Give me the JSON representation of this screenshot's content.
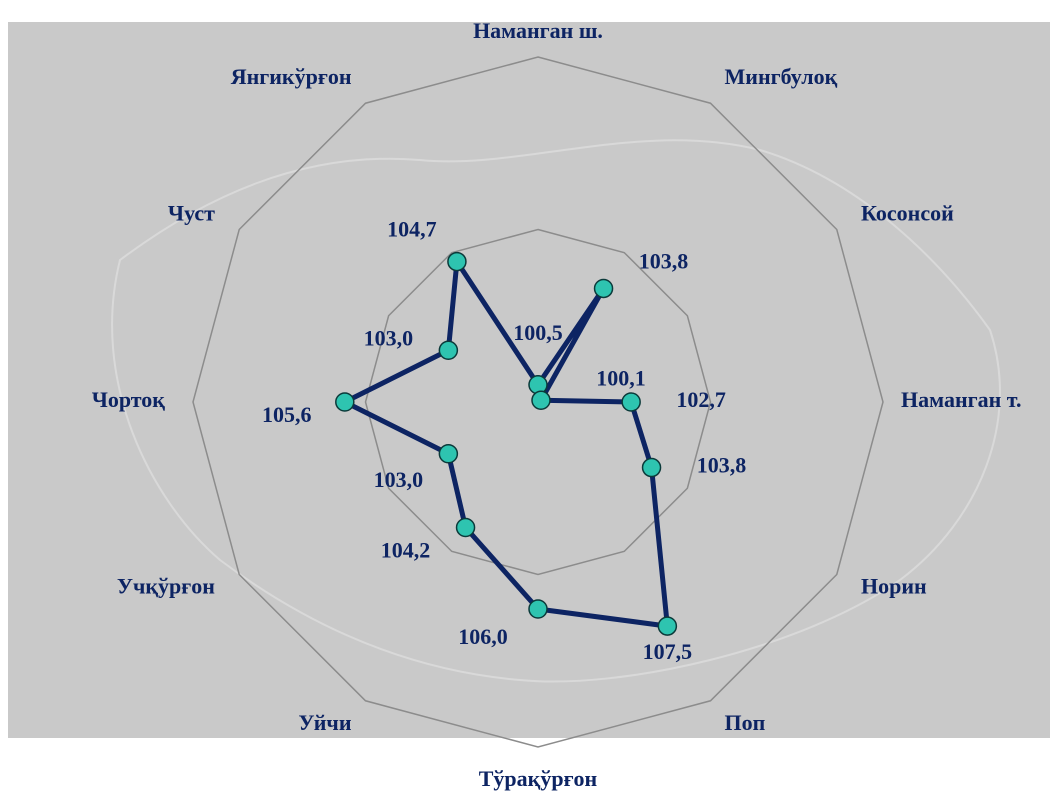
{
  "chart_data": {
    "type": "radar",
    "categories": [
      "Наманган ш.",
      "Мингбулоқ",
      "Косонсой",
      "Наманган т.",
      "Норин",
      "Поп",
      "Тўрақўрғон",
      "Уйчи",
      "Учқўрғон",
      "Чортоқ",
      "Чуст",
      "Янгикўрғон"
    ],
    "values": [
      100.5,
      103.8,
      100.1,
      102.7,
      103.8,
      107.5,
      106.0,
      104.2,
      103.0,
      105.6,
      103.0,
      104.7
    ],
    "value_labels": [
      "100,5",
      "103,8",
      "100,1",
      "102,7",
      "103,8",
      "107,5",
      "106,0",
      "104,2",
      "103,0",
      "105,6",
      "103,0",
      "104,7"
    ],
    "color": "#0d2463",
    "marker_color": "#2ec4b0",
    "ylim": [
      100,
      110
    ],
    "yticks": [
      100,
      105,
      110
    ],
    "grid": true
  }
}
